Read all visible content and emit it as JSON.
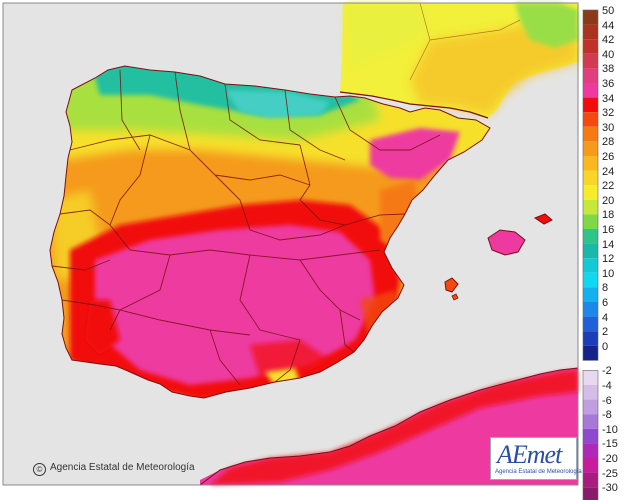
{
  "credit": "Agencia Estatal de Meteorología",
  "logo": {
    "wordmark": "AEmet",
    "subtitle": "Agencia Estatal de Meteorología"
  },
  "color_scale": [
    {
      "label": "50",
      "color": "#8a3a16"
    },
    {
      "label": "44",
      "color": "#a8331f"
    },
    {
      "label": "42",
      "color": "#c2302c"
    },
    {
      "label": "40",
      "color": "#d23a52"
    },
    {
      "label": "38",
      "color": "#e03e7c"
    },
    {
      "label": "36",
      "color": "#ee3aa0"
    },
    {
      "label": "34",
      "color": "#f20c0c"
    },
    {
      "label": "32",
      "color": "#f24a10"
    },
    {
      "label": "30",
      "color": "#f47a14"
    },
    {
      "label": "28",
      "color": "#f69a1a"
    },
    {
      "label": "26",
      "color": "#f8b820"
    },
    {
      "label": "24",
      "color": "#fad426"
    },
    {
      "label": "22",
      "color": "#f6ec2c"
    },
    {
      "label": "20",
      "color": "#c6e83a"
    },
    {
      "label": "18",
      "color": "#7ed848"
    },
    {
      "label": "16",
      "color": "#2ec48a"
    },
    {
      "label": "14",
      "color": "#1ab8a8"
    },
    {
      "label": "12",
      "color": "#14c8d6"
    },
    {
      "label": "10",
      "color": "#10d8f0"
    },
    {
      "label": "8",
      "color": "#14b0f0"
    },
    {
      "label": "6",
      "color": "#1e88e8"
    },
    {
      "label": "4",
      "color": "#2060d8"
    },
    {
      "label": "2",
      "color": "#1c3cb8"
    },
    {
      "label": "0",
      "color": "#14248a"
    },
    {
      "label": "-2",
      "color": "#e8d8f0"
    },
    {
      "label": "-4",
      "color": "#d4bee8"
    },
    {
      "label": "-6",
      "color": "#c09ee0"
    },
    {
      "label": "-8",
      "color": "#a878d8"
    },
    {
      "label": "-10",
      "color": "#9048d0"
    },
    {
      "label": "-15",
      "color": "#b028b8"
    },
    {
      "label": "-20",
      "color": "#c81c9c"
    },
    {
      "label": "-25",
      "color": "#a81c80"
    },
    {
      "label": "-30",
      "color": "#8a1a6a"
    }
  ],
  "colors": {
    "sea": "#e6e6e6",
    "border": "#7a1010",
    "hot": "#ee3aa0",
    "very_hot_red": "#f20c0c"
  }
}
